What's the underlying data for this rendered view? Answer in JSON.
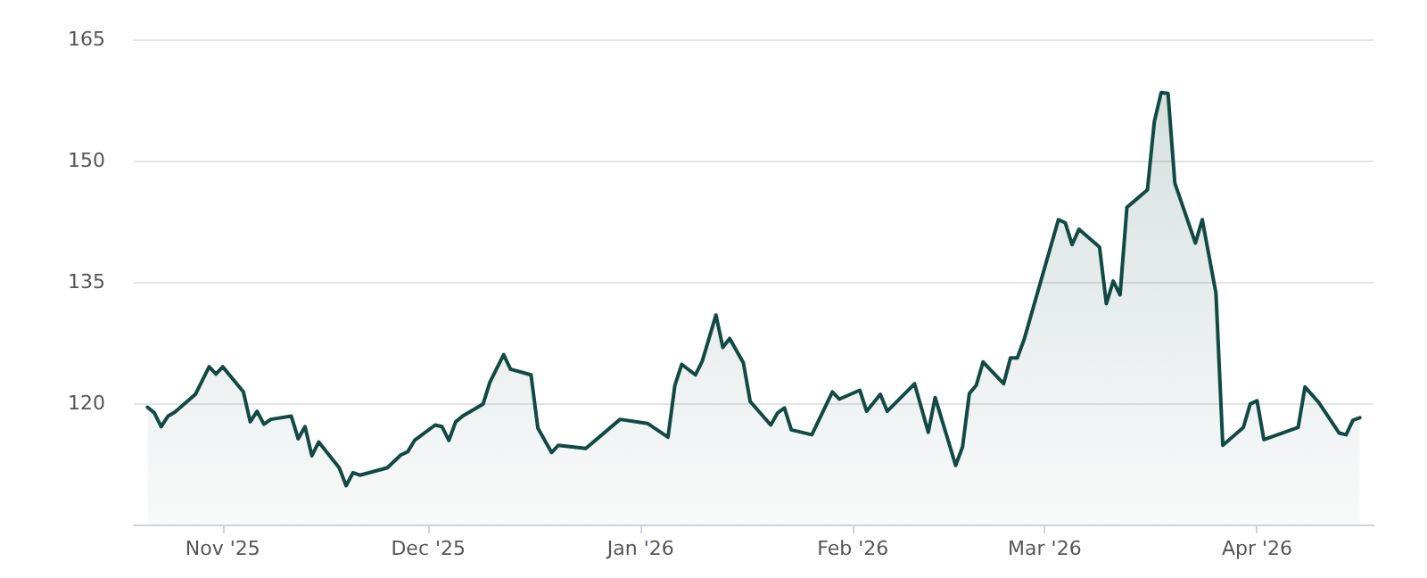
{
  "chart_data": {
    "type": "area",
    "color": "#114a44",
    "x": [
      "2025-10-21",
      "2025-10-22",
      "2025-10-23",
      "2025-10-24",
      "2025-10-25",
      "2025-10-28",
      "2025-10-30",
      "2025-10-31",
      "2025-11-01",
      "2025-11-04",
      "2025-11-05",
      "2025-11-06",
      "2025-11-07",
      "2025-11-08",
      "2025-11-11",
      "2025-11-12",
      "2025-11-13",
      "2025-11-14",
      "2025-11-15",
      "2025-11-18",
      "2025-11-19",
      "2025-11-20",
      "2025-11-21",
      "2025-11-25",
      "2025-11-27",
      "2025-11-28",
      "2025-11-29",
      "2025-12-02",
      "2025-12-03",
      "2025-12-04",
      "2025-12-05",
      "2025-12-06",
      "2025-12-09",
      "2025-12-10",
      "2025-12-12",
      "2025-12-13",
      "2025-12-16",
      "2025-12-17",
      "2025-12-19",
      "2025-12-20",
      "2025-12-24",
      "2025-12-29",
      "2026-01-02",
      "2026-01-05",
      "2026-01-06",
      "2026-01-07",
      "2026-01-09",
      "2026-01-10",
      "2026-01-12",
      "2026-01-13",
      "2026-01-14",
      "2026-01-16",
      "2026-01-17",
      "2026-01-20",
      "2026-01-21",
      "2026-01-22",
      "2026-01-23",
      "2026-01-26",
      "2026-01-29",
      "2026-01-30",
      "2026-02-02",
      "2026-02-03",
      "2026-02-05",
      "2026-02-06",
      "2026-02-10",
      "2026-02-12",
      "2026-02-13",
      "2026-02-16",
      "2026-02-17",
      "2026-02-18",
      "2026-02-19",
      "2026-02-20",
      "2026-02-23",
      "2026-02-24",
      "2026-02-25",
      "2026-02-26",
      "2026-03-03",
      "2026-03-04",
      "2026-03-05",
      "2026-03-06",
      "2026-03-09",
      "2026-03-10",
      "2026-03-11",
      "2026-03-12",
      "2026-03-13",
      "2026-03-16",
      "2026-03-17",
      "2026-03-18",
      "2026-03-19",
      "2026-03-20",
      "2026-03-23",
      "2026-03-24",
      "2026-03-26",
      "2026-03-27",
      "2026-03-30",
      "2026-03-31",
      "2026-04-01",
      "2026-04-02",
      "2026-04-07",
      "2026-04-08",
      "2026-04-10",
      "2026-04-13",
      "2026-04-14",
      "2026-04-15",
      "2026-04-16"
    ],
    "values": [
      119.5,
      118.8,
      117.1,
      118.4,
      118.9,
      121.1,
      124.5,
      123.6,
      124.5,
      121.4,
      117.7,
      119,
      117.4,
      118,
      118.4,
      115.6,
      117.1,
      113.5,
      115.2,
      112,
      109.8,
      111.4,
      111.1,
      112,
      113.6,
      114,
      115.4,
      117.3,
      117.1,
      115.4,
      117.7,
      118.4,
      119.9,
      122.6,
      126,
      124.2,
      123.5,
      116.9,
      113.9,
      114.8,
      114.4,
      118,
      117.5,
      115.8,
      122.2,
      124.8,
      123.5,
      125.2,
      130.9,
      126.9,
      128,
      125,
      120.2,
      117.3,
      118.8,
      119.4,
      116.7,
      116.1,
      121.4,
      120.5,
      121.6,
      119,
      121.1,
      119,
      122.4,
      116.4,
      120.7,
      112.3,
      114.6,
      121.2,
      122.2,
      125.1,
      122.4,
      125.6,
      125.6,
      127.9,
      142.7,
      142.3,
      139.6,
      141.5,
      139.3,
      132.3,
      135.1,
      133.4,
      144.2,
      146.4,
      154.8,
      158.4,
      158.3,
      147.2,
      139.8,
      142.7,
      133.6,
      114.8,
      117,
      119.9,
      120.3,
      115.5,
      117,
      122,
      120.1,
      116.3,
      116.1,
      117.9,
      118.2
    ],
    "xlim": [
      "2025-10-19",
      "2026-04-18"
    ],
    "xticks": [
      {
        "value": "2025-11-01",
        "label": "Nov '25"
      },
      {
        "value": "2025-12-01",
        "label": "Dec '25"
      },
      {
        "value": "2026-01-01",
        "label": "Jan '26"
      },
      {
        "value": "2026-02-01",
        "label": "Feb '26"
      },
      {
        "value": "2026-03-01",
        "label": "Mar '26"
      },
      {
        "value": "2026-04-01",
        "label": "Apr '26"
      }
    ],
    "ylim": [
      105,
      165
    ],
    "yticks": [
      120,
      135,
      150,
      165
    ],
    "grid": "y",
    "marker": "none",
    "line_style": "solid"
  }
}
